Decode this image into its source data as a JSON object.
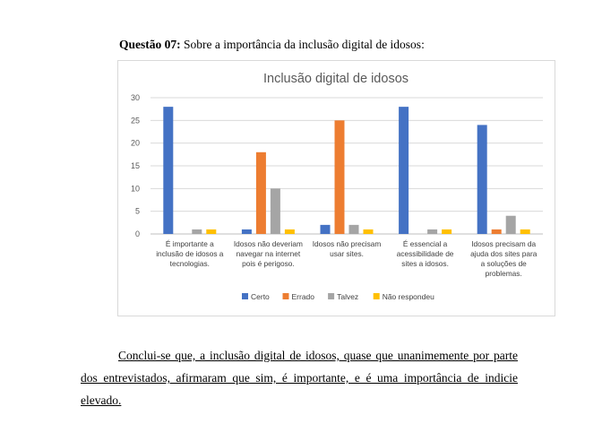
{
  "question": {
    "number": "Questão 07:",
    "text": "Sobre a importância da inclusão digital de idosos:"
  },
  "chart_data": {
    "type": "bar",
    "title": "Inclusão digital de idosos",
    "categories": [
      [
        "É importante a",
        "inclusão de idosos a",
        "tecnologias."
      ],
      [
        "Idosos não deveriam",
        "navegar na internet",
        "pois é perigoso."
      ],
      [
        "Idosos não precisam",
        "usar sites."
      ],
      [
        "É essencial a",
        "acessibilidade de",
        "sites a idosos."
      ],
      [
        "Idosos precisam da",
        "ajuda dos sites para",
        "a soluções de",
        "problemas."
      ]
    ],
    "series": [
      {
        "name": "Certo",
        "color": "#4472c4",
        "values": [
          28,
          1,
          2,
          28,
          24
        ]
      },
      {
        "name": "Errado",
        "color": "#ed7d31",
        "values": [
          0,
          18,
          25,
          0,
          1
        ]
      },
      {
        "name": "Talvez",
        "color": "#a5a5a5",
        "values": [
          1,
          10,
          2,
          1,
          4
        ]
      },
      {
        "name": "Não respondeu",
        "color": "#ffc000",
        "values": [
          1,
          1,
          1,
          1,
          1
        ]
      }
    ],
    "ylim": [
      0,
      30
    ],
    "yticks": [
      0,
      5,
      10,
      15,
      20,
      25,
      30
    ],
    "grid": true,
    "legend_position": "bottom"
  },
  "conclusion": {
    "text": "Conclui-se que, a inclusão digital de idosos, quase que unanimemente por parte dos entrevistados, afirmaram que sim, é importante, e é uma importância de indicie elevado."
  }
}
